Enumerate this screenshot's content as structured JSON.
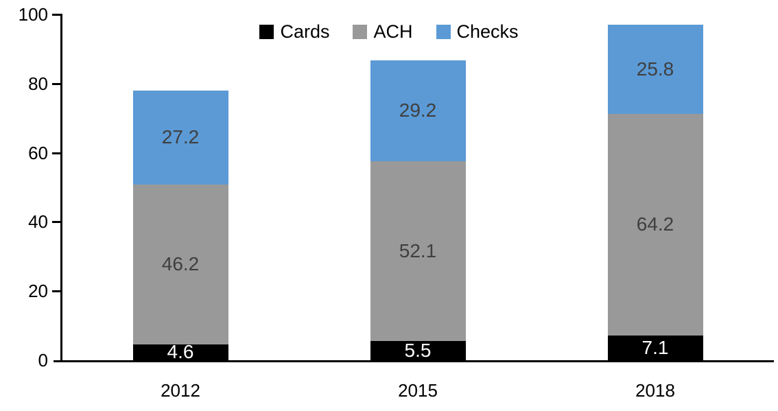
{
  "chart_data": {
    "type": "bar",
    "stacked": true,
    "title": "",
    "xlabel": "",
    "ylabel": "",
    "categories": [
      "2012",
      "2015",
      "2018"
    ],
    "series": [
      {
        "name": "Cards",
        "color": "#000000",
        "label_color": "#ffffff",
        "values": [
          4.6,
          5.5,
          7.1
        ]
      },
      {
        "name": "ACH",
        "color": "#999999",
        "label_color": "#3f3f3f",
        "values": [
          46.2,
          52.1,
          64.2
        ]
      },
      {
        "name": "Checks",
        "color": "#5b9ad5",
        "label_color": "#3f3f3f",
        "values": [
          27.2,
          29.2,
          25.8
        ]
      }
    ],
    "totals": [
      78.0,
      86.8,
      97.1
    ],
    "ylim": [
      0,
      100
    ],
    "y_ticks": [
      0,
      20,
      40,
      60,
      80,
      100
    ],
    "grid": false,
    "legend_position": "top-center",
    "legend_entries": [
      "Cards",
      "ACH",
      "Checks"
    ],
    "axis_color": "#000000",
    "background_color": "#ffffff"
  }
}
